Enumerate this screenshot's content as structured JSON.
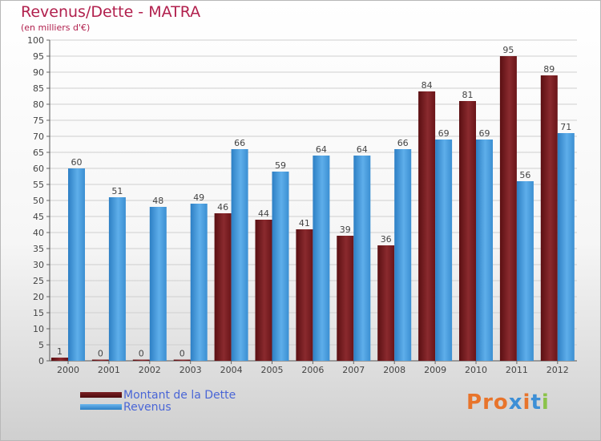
{
  "title": "Revenus/Dette - MATRA",
  "subtitle": "(en milliers d'€)",
  "logo_text": "Proxiti",
  "chart_data": {
    "type": "bar",
    "title": "Revenus/Dette - MATRA",
    "subtitle": "(en milliers d'€)",
    "xlabel": "",
    "ylabel": "",
    "ylim": [
      0,
      100
    ],
    "y_ticks": [
      0,
      5,
      10,
      15,
      20,
      25,
      30,
      35,
      40,
      45,
      50,
      55,
      60,
      65,
      70,
      75,
      80,
      85,
      90,
      95,
      100
    ],
    "categories": [
      "2000",
      "2001",
      "2002",
      "2003",
      "2004",
      "2005",
      "2006",
      "2007",
      "2008",
      "2009",
      "2010",
      "2011",
      "2012"
    ],
    "series": [
      {
        "name": "Montant de la Dette",
        "color": "#7a1f23",
        "values": [
          1,
          0,
          0,
          0,
          46,
          44,
          41,
          39,
          36,
          84,
          81,
          95,
          89
        ]
      },
      {
        "name": "Revenus",
        "color": "#3d95d9",
        "values": [
          60,
          51,
          48,
          49,
          66,
          59,
          64,
          64,
          66,
          69,
          69,
          56,
          71
        ]
      }
    ],
    "grid": true,
    "legend_position": "bottom-left"
  }
}
